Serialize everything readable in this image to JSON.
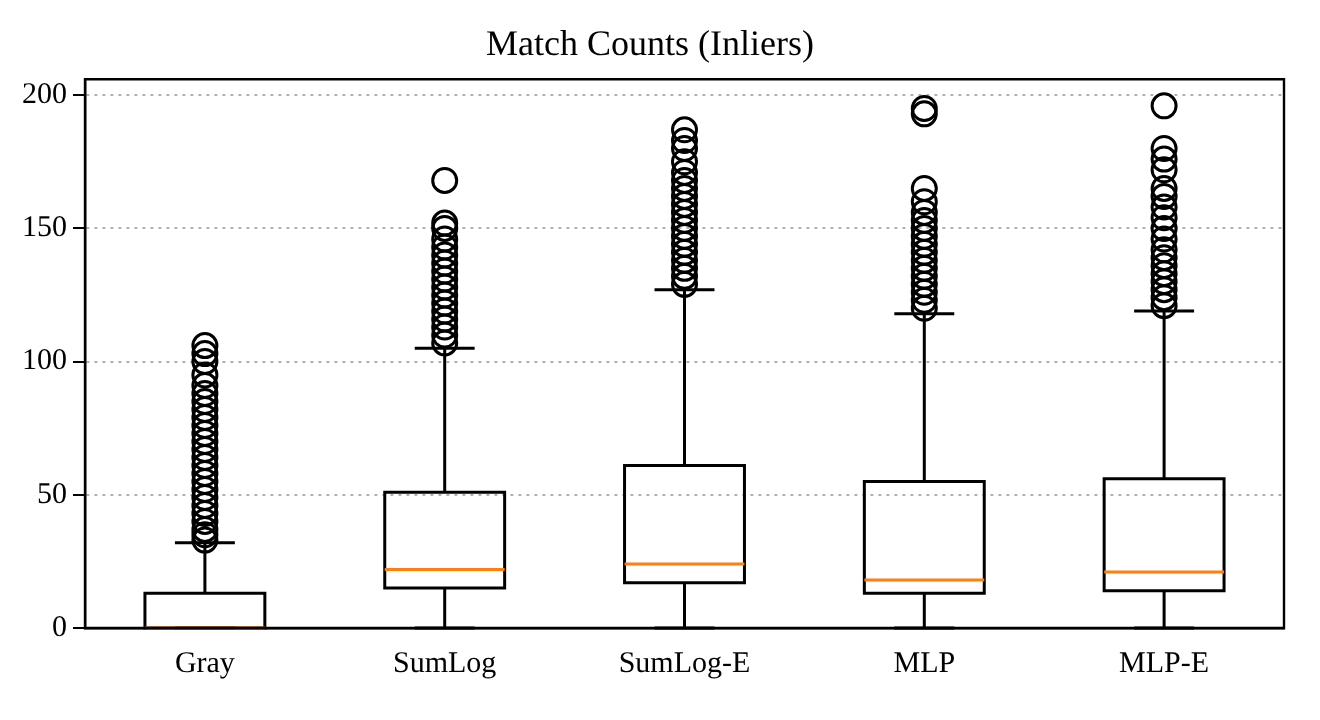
{
  "chart_data": {
    "type": "box",
    "title": "Match Counts (Inliers)",
    "categories": [
      "Gray",
      "SumLog",
      "SumLog-E",
      "MLP",
      "MLP-E"
    ],
    "color": "#000000",
    "boxes": [
      {
        "low": 0,
        "q1": 0,
        "median": 0,
        "q3": 13,
        "high": 32,
        "outliers": [
          33,
          35,
          37,
          40,
          43,
          46,
          49,
          52,
          55,
          58,
          61,
          64,
          67,
          70,
          73,
          76,
          79,
          82,
          85,
          88,
          91,
          95,
          100,
          103,
          106
        ]
      },
      {
        "low": 0,
        "q1": 15,
        "median": 22,
        "q3": 51,
        "high": 105,
        "outliers": [
          107,
          110,
          113,
          116,
          119,
          122,
          125,
          128,
          131,
          134,
          137,
          140,
          143,
          146,
          150,
          152,
          168
        ]
      },
      {
        "low": 0,
        "q1": 17,
        "median": 24,
        "q3": 61,
        "high": 127,
        "outliers": [
          129,
          132,
          135,
          138,
          141,
          144,
          147,
          150,
          153,
          156,
          159,
          162,
          165,
          168,
          171,
          175,
          180,
          183,
          187
        ]
      },
      {
        "low": 0,
        "q1": 13,
        "median": 18,
        "q3": 55,
        "high": 118,
        "outliers": [
          120,
          123,
          126,
          129,
          132,
          135,
          138,
          141,
          144,
          147,
          150,
          153,
          156,
          160,
          165,
          193,
          195
        ]
      },
      {
        "low": 0,
        "q1": 14,
        "median": 21,
        "q3": 56,
        "high": 119,
        "outliers": [
          121,
          124,
          127,
          130,
          133,
          136,
          139,
          142,
          146,
          150,
          154,
          158,
          162,
          165,
          172,
          176,
          180,
          196
        ]
      }
    ],
    "ylim": [
      0,
      206
    ],
    "yticks": [
      0,
      50,
      100,
      150,
      200
    ],
    "grid": "y",
    "legend": false
  }
}
